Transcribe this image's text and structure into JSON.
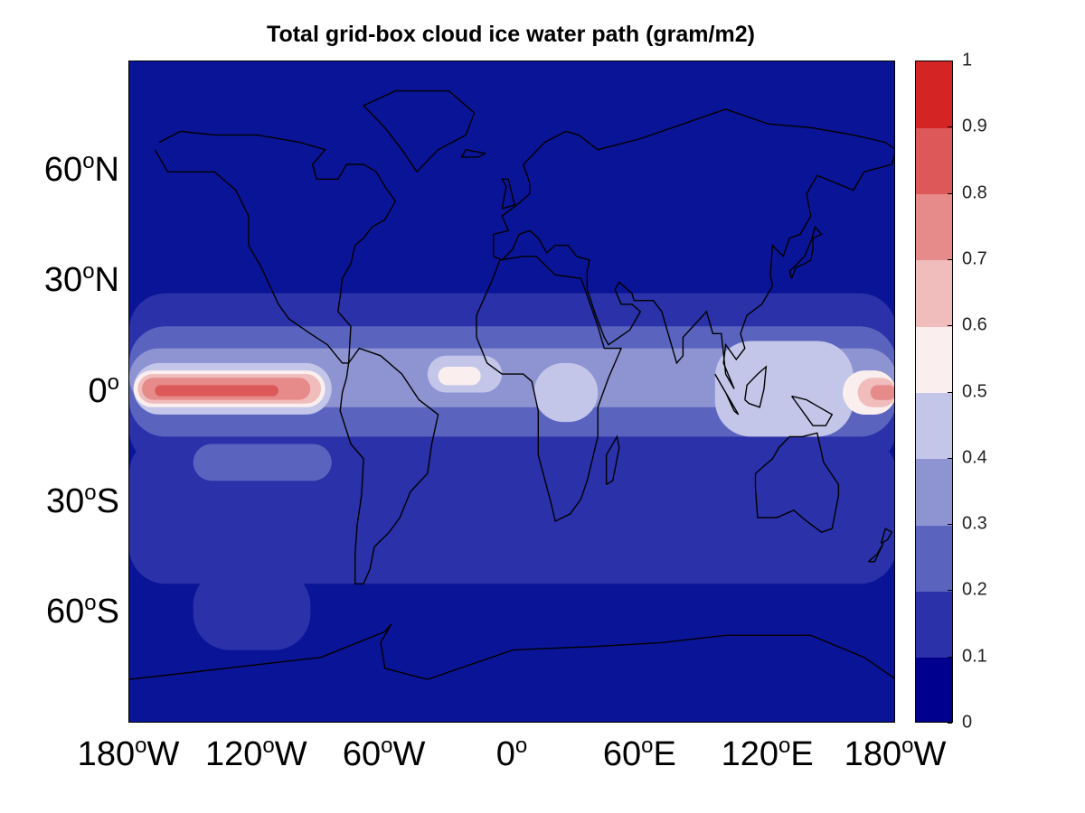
{
  "title": "Total grid-box cloud ice water path (gram/m2)",
  "lat_labels": [
    {
      "deg": "60",
      "sup": "o",
      "hem": "N"
    },
    {
      "deg": "30",
      "sup": "o",
      "hem": "N"
    },
    {
      "deg": "0",
      "sup": "o",
      "hem": ""
    },
    {
      "deg": "30",
      "sup": "o",
      "hem": "S"
    },
    {
      "deg": "60",
      "sup": "o",
      "hem": "S"
    }
  ],
  "lon_labels": [
    {
      "deg": "180",
      "sup": "o",
      "hem": "W"
    },
    {
      "deg": "120",
      "sup": "o",
      "hem": "W"
    },
    {
      "deg": "60",
      "sup": "o",
      "hem": "W"
    },
    {
      "deg": "0",
      "sup": "o",
      "hem": ""
    },
    {
      "deg": "60",
      "sup": "o",
      "hem": "E"
    },
    {
      "deg": "120",
      "sup": "o",
      "hem": "E"
    },
    {
      "deg": "180",
      "sup": "o",
      "hem": "W"
    }
  ],
  "colorbar": {
    "ticks": [
      "0",
      "0.1",
      "0.2",
      "0.3",
      "0.4",
      "0.5",
      "0.6",
      "0.7",
      "0.8",
      "0.9",
      "1"
    ],
    "colors": [
      "#00008e",
      "#2a31a9",
      "#5a64bf",
      "#8e94d2",
      "#c3c6e8",
      "#fbeeee",
      "#f0bcbc",
      "#e68a8a",
      "#dd5858",
      "#d42424"
    ],
    "range": [
      0,
      1
    ]
  },
  "map": {
    "projection": "equirectangular",
    "lon_range": [
      -180,
      180
    ],
    "lat_range": [
      -90,
      90
    ],
    "variable": "cloud ice water path",
    "units": "gram/m2",
    "features": [
      {
        "id": "central-pacific-max",
        "lon_min": -178,
        "lon_max": -85,
        "lat_min": -6,
        "lat_max": 8,
        "value_max": 0.9
      },
      {
        "id": "west-pacific-edge-max",
        "lon_min": 160,
        "lon_max": 180,
        "lat_min": -5,
        "lat_max": 5,
        "value_max": 0.8
      },
      {
        "id": "atlantic-itcz",
        "lon_min": -40,
        "lon_max": -10,
        "lat_min": 0,
        "lat_max": 10,
        "value_max": 0.5
      },
      {
        "id": "central-africa",
        "lon_min": 15,
        "lon_max": 40,
        "lat_min": -8,
        "lat_max": 8,
        "value_max": 0.5
      },
      {
        "id": "maritime-continent",
        "lon_min": 95,
        "lon_max": 160,
        "lat_min": -10,
        "lat_max": 15,
        "value_max": 0.5
      }
    ]
  }
}
